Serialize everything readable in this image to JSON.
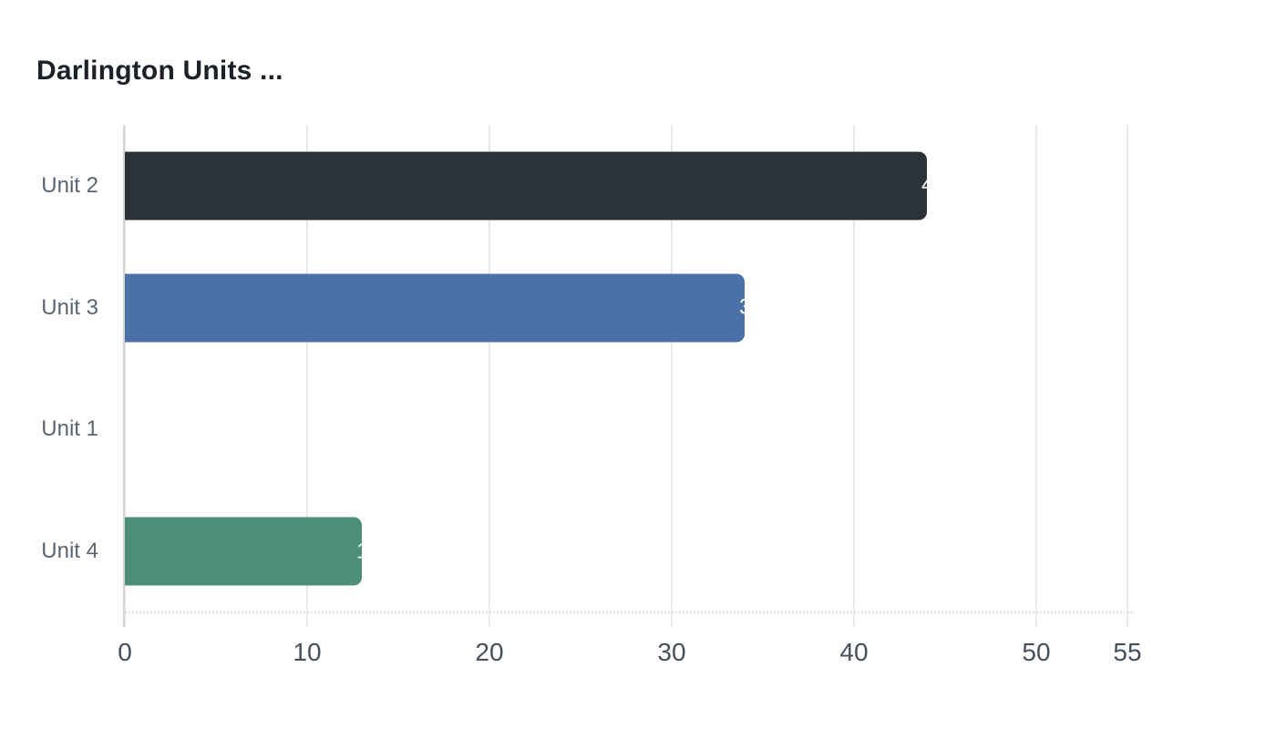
{
  "chart_data": {
    "type": "bar",
    "orientation": "horizontal",
    "title": "Darlington Units ...",
    "categories": [
      "Unit 2",
      "Unit 3",
      "Unit 1",
      "Unit 4"
    ],
    "values": [
      44,
      34,
      0,
      13
    ],
    "bar_colors": [
      "#2b3339",
      "#4b70a7",
      null,
      "#4d8e7b"
    ],
    "value_label_color": "#ffffff",
    "xticks": [
      0,
      10,
      20,
      30,
      40,
      50,
      55
    ],
    "xlim": [
      0,
      55
    ],
    "xlabel": "",
    "ylabel": "",
    "grid": true,
    "legend": false
  }
}
